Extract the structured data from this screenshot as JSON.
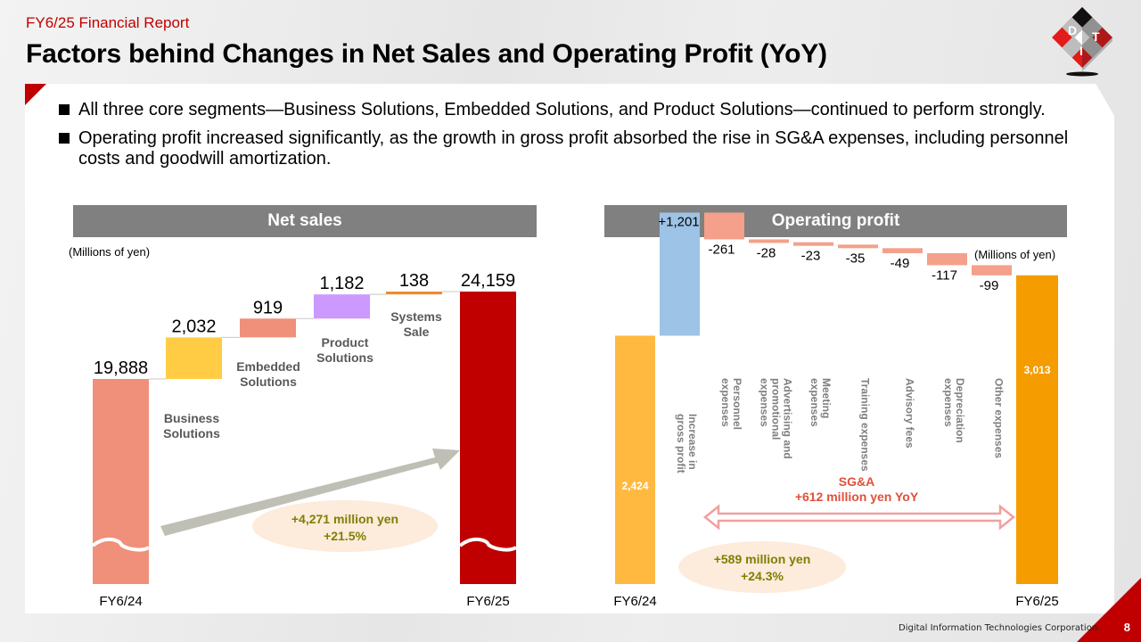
{
  "header": {
    "subtitle": "FY6/25 Financial Report",
    "title": "Factors behind Changes in Net Sales and Operating Profit (YoY)",
    "logo_letters": [
      "D",
      "I",
      "T"
    ]
  },
  "bullets": [
    "All three core segments—Business Solutions, Embedded Solutions, and Product Solutions—continued to perform strongly.",
    "Operating profit increased significantly, as the growth in gross profit absorbed the rise in SG&A expenses, including personnel costs and goodwill amortization."
  ],
  "footer": {
    "company": "Digital Information Technologies Corporation.",
    "page_number": "8"
  },
  "colors": {
    "brand_red": "#c00000",
    "header_gray": "#808080",
    "annotation_olive": "#7f7f00",
    "sga_red": "#e0503a"
  },
  "chart_data": [
    {
      "type": "bar",
      "subtype": "waterfall",
      "title": "Net sales",
      "unit_label": "(Millions of yen)",
      "axis_break": true,
      "categories": [
        "FY6/24",
        "Business Solutions",
        "Embedded Solutions",
        "Product Solutions",
        "Systems Sale",
        "FY6/25"
      ],
      "category_labels": [
        "FY6/24",
        "Business\nSolutions",
        "Embedded\nSolutions",
        "Product\nSolutions",
        "Systems\nSale",
        "FY6/25"
      ],
      "values": [
        19888,
        2032,
        919,
        1182,
        138,
        24159
      ],
      "value_labels": [
        "19,888",
        "2,032",
        "919",
        "1,182",
        "138",
        "24,159"
      ],
      "kinds": [
        "total",
        "delta",
        "delta",
        "delta",
        "delta",
        "total"
      ],
      "bar_colors": [
        "#f0907a",
        "#ffcc44",
        "#f0907a",
        "#cc99ff",
        "#f08a30",
        "#c00000"
      ],
      "annotation": {
        "lines": [
          "+4,271 million yen",
          "+21.5%"
        ],
        "change": 4271,
        "change_pct": 21.5
      }
    },
    {
      "type": "bar",
      "subtype": "waterfall",
      "title": "Operating profit",
      "unit_label": "(Millions of yen)",
      "categories": [
        "FY6/24",
        "Increase in gross profit",
        "Personnel expenses",
        "Advertising and promotional expenses",
        "Meeting expenses",
        "Training expenses",
        "Advisory fees",
        "Depreciation expenses",
        "Other expenses",
        "FY6/25"
      ],
      "category_labels": [
        "FY6/24",
        "Increase in\ngross profit",
        "Personnel\nexpenses",
        "Advertising and\npromotional\nexpenses",
        "Meeting\nexpenses",
        "Training expenses",
        "Advisory fees",
        "Depreciation\nexpenses",
        "Other expenses",
        "FY6/25"
      ],
      "values": [
        2424,
        1201,
        -261,
        -28,
        -23,
        -35,
        -49,
        -117,
        -99,
        3013
      ],
      "value_labels": [
        "2,424",
        "+1,201",
        "-261",
        "-28",
        "-23",
        "-35",
        "-49",
        "-117",
        "-99",
        "3,013"
      ],
      "kinds": [
        "total",
        "delta",
        "delta",
        "delta",
        "delta",
        "delta",
        "delta",
        "delta",
        "delta",
        "total"
      ],
      "bar_colors": [
        "#ffb940",
        "#9dc3e6",
        "#f4a08a",
        "#f4a08a",
        "#f4a08a",
        "#f4a08a",
        "#f4a08a",
        "#f4a08a",
        "#f4a08a",
        "#f49c00"
      ],
      "sga_annotation": {
        "lines": [
          "SG&A",
          "+612 million yen YoY"
        ],
        "change": 612
      },
      "annotation": {
        "lines": [
          "+589 million yen",
          "+24.3%"
        ],
        "change": 589,
        "change_pct": 24.3
      }
    }
  ]
}
